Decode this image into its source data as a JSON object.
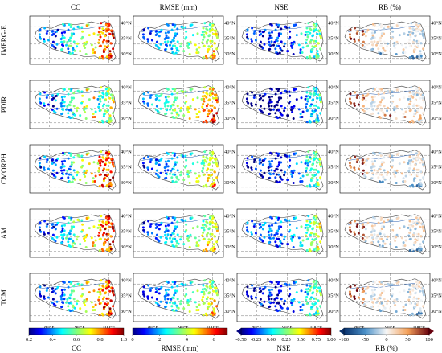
{
  "column_titles": [
    "CC",
    "RMSE (mm)",
    "NSE",
    "RB (%)"
  ],
  "row_labels": [
    "IMERG-E",
    "PDIR",
    "CMORPH",
    "AM",
    "TCM"
  ],
  "lat_ticks": [
    "40°N",
    "35°N",
    "30°N"
  ],
  "lon_ticks": [
    "80°E",
    "90°E",
    "100°E"
  ],
  "colorbars": [
    {
      "label": "CC",
      "ticks": [
        "0.2",
        "0.4",
        "0.6",
        "0.8",
        "1.0"
      ],
      "min": 0.2,
      "max": 1.0,
      "colormap": "jet",
      "extend": "none"
    },
    {
      "label": "RMSE (mm)",
      "ticks": [
        "0",
        "2",
        "4",
        "6"
      ],
      "min": 0,
      "max": 7,
      "colormap": "jet",
      "extend": "none"
    },
    {
      "label": "NSE",
      "ticks": [
        "-0.50",
        "-0.25",
        "0.00",
        "0.25",
        "0.50",
        "0.75",
        "1.00"
      ],
      "min": -0.5,
      "max": 1.0,
      "colormap": "jet",
      "extend": "min"
    },
    {
      "label": "RB (%)",
      "ticks": [
        "-100",
        "-50",
        "0",
        "50",
        "100"
      ],
      "min": -100,
      "max": 100,
      "colormap": "diverging",
      "extend": "both"
    }
  ],
  "colors": {
    "frame": "#000000",
    "grid": "#555555",
    "outline": "#555555",
    "river": "#2a5fb0"
  }
}
